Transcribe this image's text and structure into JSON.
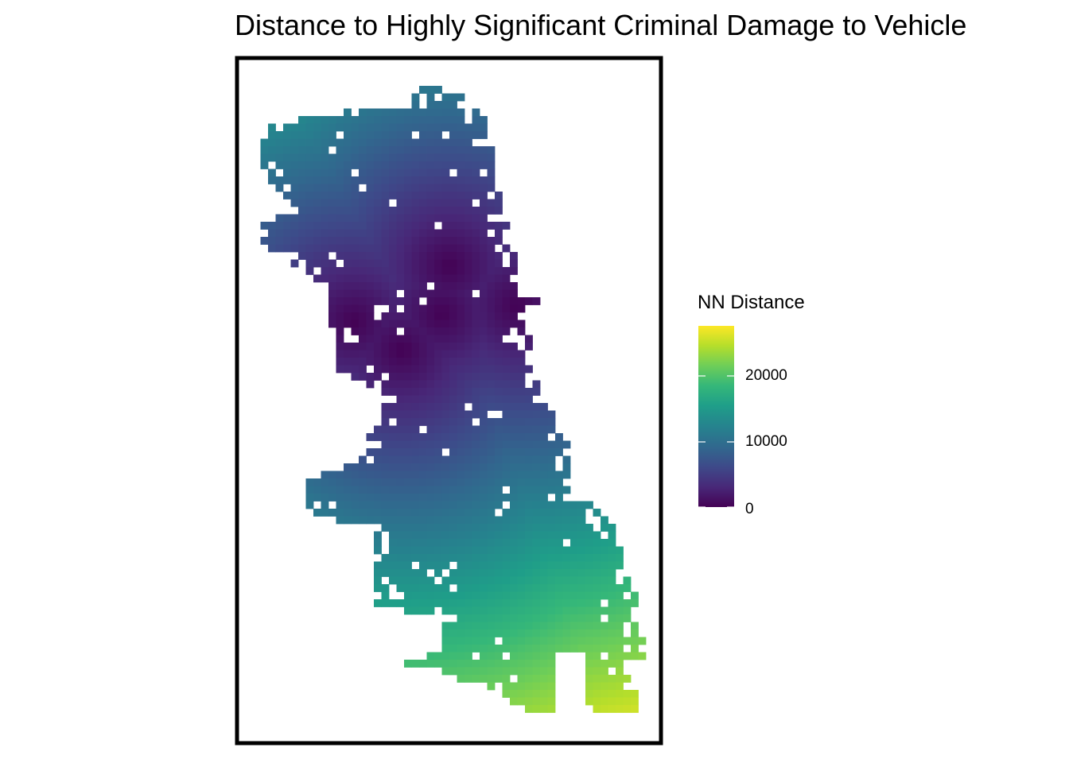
{
  "title": "Distance to Highly Significant Criminal Damage to Vehicle",
  "chart_data": {
    "type": "heatmap",
    "title": "Distance to Highly Significant Criminal Damage to Vehicle",
    "value_name": "NN Distance",
    "colorscale": "viridis",
    "color_range": [
      0,
      28000
    ],
    "legend": {
      "title": "NN Distance",
      "ticks": [
        0,
        10000,
        20000
      ],
      "tick_labels": [
        "0",
        "10000",
        "20000"
      ],
      "placement": "right"
    },
    "grid": false,
    "low_distance_centers_description": "low values concentrated in the central and near-north area",
    "hotspots": [
      {
        "name": "north-central",
        "value": 0
      },
      {
        "name": "east-central",
        "value": 0
      },
      {
        "name": "west-central",
        "value": 0
      },
      {
        "name": "central-south",
        "value": 0
      }
    ],
    "max_value_region": "far south-east corner",
    "max_value": 28000
  },
  "colors": {
    "viridis": [
      "#440154",
      "#482878",
      "#3e4989",
      "#31688e",
      "#26828e",
      "#1f9e89",
      "#35b779",
      "#6ece58",
      "#b5de2b",
      "#fde725"
    ],
    "frame": "#000000",
    "background": "#ffffff"
  }
}
